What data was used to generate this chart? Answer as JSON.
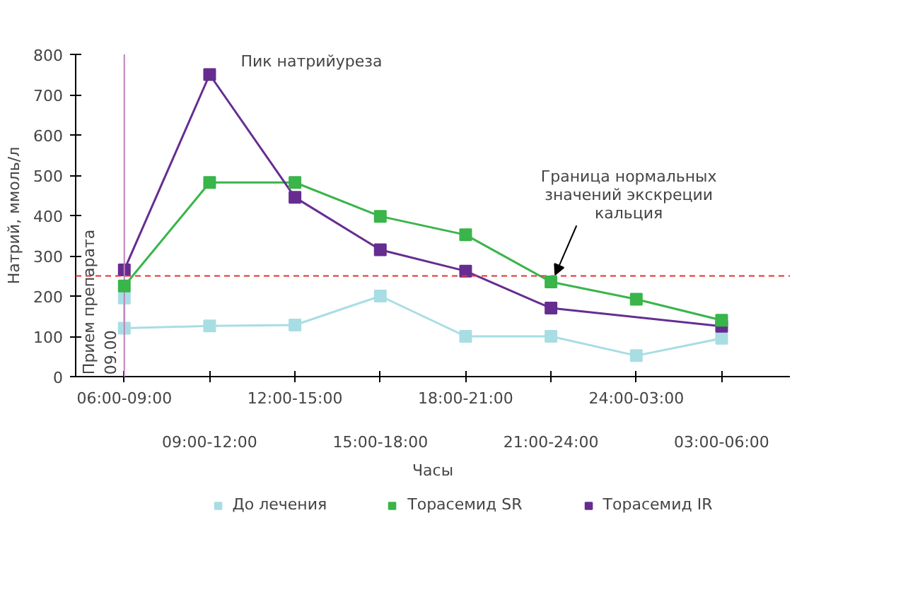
{
  "chart_data": {
    "type": "line",
    "xlabel": "Часы",
    "ylabel": "Натрий, ммоль/л",
    "marker": "square",
    "grid": false,
    "legend": "bottom",
    "ylim": [
      0,
      800
    ],
    "yticks": [
      0,
      100,
      200,
      300,
      400,
      500,
      600,
      700,
      800
    ],
    "categories": [
      "06:00-09:00",
      "09:00-12:00",
      "12:00-15:00",
      "15:00-18:00",
      "18:00-21:00",
      "21:00-24:00",
      "24:00-03:00",
      "03:00-06:00"
    ],
    "series": [
      {
        "name": "До лечения",
        "color": "#a8dde3",
        "x": [
          "06:00-09:00",
          "06:00-09:00",
          "09:00-12:00",
          "12:00-15:00",
          "15:00-18:00",
          "18:00-21:00",
          "21:00-24:00",
          "24:00-03:00",
          "03:00-06:00"
        ],
        "values": [
          195,
          120,
          126,
          128,
          200,
          100,
          100,
          52,
          95
        ]
      },
      {
        "name": "Торасемид SR",
        "color": "#39b54a",
        "values": [
          225,
          482,
          482,
          398,
          352,
          235,
          192,
          140
        ]
      },
      {
        "name": "Торасемид IR",
        "color": "#662d91",
        "x": [
          "06:00-09:00",
          "09:00-12:00",
          "12:00-15:00",
          "15:00-18:00",
          "18:00-21:00",
          "21:00-24:00",
          "03:00-06:00"
        ],
        "values": [
          265,
          750,
          445,
          315,
          262,
          170,
          125
        ]
      }
    ],
    "ref_lines": [
      {
        "axis": "y",
        "value": 250,
        "color": "#e8302e",
        "line_style": "dashed"
      },
      {
        "axis": "x",
        "value": "06:00-09:00",
        "label": "Прием препарата\n09.00",
        "color": "#c080c0",
        "line_style": "solid"
      }
    ],
    "annotations": [
      {
        "text": "Пик натрийуреза",
        "x": "09:00-12:00",
        "y": 750
      },
      {
        "text": "Граница нормальных\nзначений экскреции\nкальция",
        "x": "21:00-24:00",
        "y": 235
      }
    ]
  }
}
